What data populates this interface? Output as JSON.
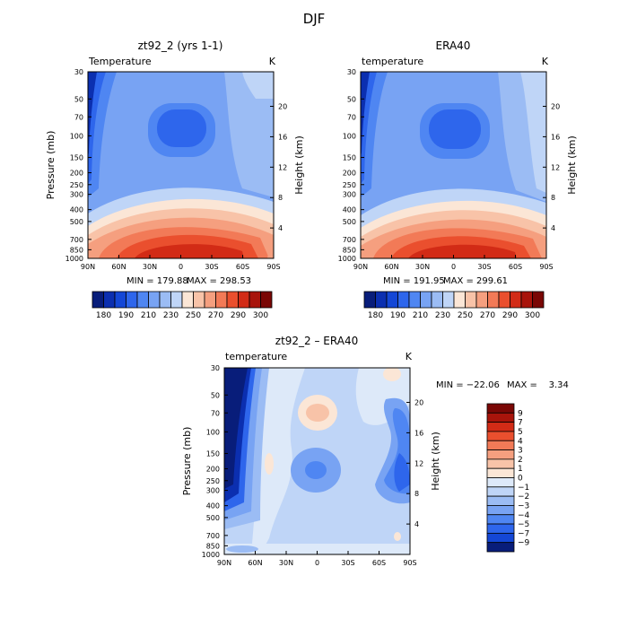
{
  "figure": {
    "title": "DJF"
  },
  "chart_data": [
    {
      "type": "contour",
      "title": "zt92_2 (yrs 1-1)",
      "variable": "Temperature",
      "units": "K",
      "xlabel": "",
      "ylabel": "Pressure (mb)",
      "ylabel_right": "Height (km)",
      "x_ticks": [
        "90N",
        "60N",
        "30N",
        "0",
        "30S",
        "60S",
        "90S"
      ],
      "y_ticks": [
        "30",
        "50",
        "70",
        "100",
        "150",
        "200",
        "250",
        "300",
        "400",
        "500",
        "700",
        "850",
        "1000"
      ],
      "height_ticks": [
        "20",
        "16",
        "12",
        "8",
        "4"
      ],
      "min_label": "MIN = 179.88",
      "max_label": "MAX = 298.53",
      "min": 179.88,
      "max": 298.53,
      "colorbar": {
        "orientation": "horizontal",
        "levels": [
          "180",
          "190",
          "210",
          "230",
          "250",
          "270",
          "290",
          "300"
        ],
        "colors": [
          "#081d7a",
          "#0b2fb0",
          "#1447d6",
          "#2e66ec",
          "#4f86f2",
          "#78a3f3",
          "#9bbcf4",
          "#bfd5f7",
          "#fbe6d6",
          "#f8c3a8",
          "#f59f7f",
          "#f27a57",
          "#ea4f2e",
          "#d22b16",
          "#a8140b",
          "#7a0705"
        ]
      }
    },
    {
      "type": "contour",
      "title": "ERA40",
      "variable": "temperature",
      "units": "K",
      "xlabel": "",
      "ylabel": "",
      "ylabel_right": "Height (km)",
      "x_ticks": [
        "90N",
        "60N",
        "30N",
        "0",
        "30S",
        "60S",
        "90S"
      ],
      "y_ticks": [
        "30",
        "50",
        "70",
        "100",
        "150",
        "200",
        "250",
        "300",
        "400",
        "500",
        "700",
        "850",
        "1000"
      ],
      "height_ticks": [
        "20",
        "16",
        "12",
        "8",
        "4"
      ],
      "min_label": "MIN = 191.95",
      "max_label": "MAX = 299.61",
      "min": 191.95,
      "max": 299.61,
      "colorbar": {
        "orientation": "horizontal",
        "levels": [
          "180",
          "190",
          "210",
          "230",
          "250",
          "270",
          "290",
          "300"
        ],
        "colors": [
          "#081d7a",
          "#0b2fb0",
          "#1447d6",
          "#2e66ec",
          "#4f86f2",
          "#78a3f3",
          "#9bbcf4",
          "#bfd5f7",
          "#fbe6d6",
          "#f8c3a8",
          "#f59f7f",
          "#f27a57",
          "#ea4f2e",
          "#d22b16",
          "#a8140b",
          "#7a0705"
        ]
      }
    },
    {
      "type": "contour",
      "title": "zt92_2 – ERA40",
      "variable": "temperature",
      "units": "K",
      "xlabel": "",
      "ylabel": "Pressure (mb)",
      "ylabel_right": "Height (km)",
      "x_ticks": [
        "90N",
        "60N",
        "30N",
        "0",
        "30S",
        "60S",
        "90S"
      ],
      "y_ticks": [
        "30",
        "50",
        "70",
        "100",
        "150",
        "200",
        "250",
        "300",
        "400",
        "500",
        "700",
        "850",
        "1000"
      ],
      "height_ticks": [
        "20",
        "16",
        "12",
        "8",
        "4"
      ],
      "min_label": "MIN = −22.06",
      "max_label": "MAX =    3.34",
      "min": -22.06,
      "max": 3.34,
      "colorbar": {
        "orientation": "vertical",
        "levels": [
          "9",
          "7",
          "5",
          "4",
          "3",
          "2",
          "1",
          "0",
          "−1",
          "−2",
          "−3",
          "−4",
          "−5",
          "−7",
          "−9"
        ],
        "colors": [
          "#7a0705",
          "#a8140b",
          "#d22b16",
          "#ea4f2e",
          "#f27a57",
          "#f59f7f",
          "#f8c3a8",
          "#fbe6d6",
          "#dde9f9",
          "#bfd5f7",
          "#9bbcf4",
          "#78a3f3",
          "#4f86f2",
          "#2e66ec",
          "#1447d6",
          "#081d7a"
        ]
      }
    }
  ]
}
